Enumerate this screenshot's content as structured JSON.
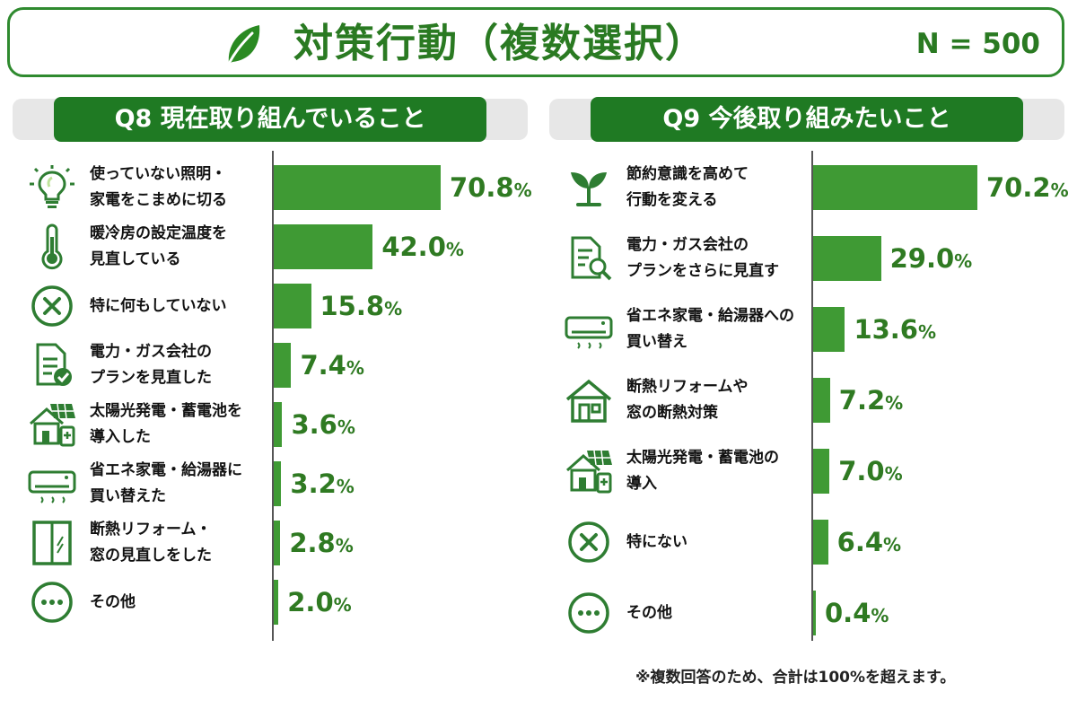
{
  "title": {
    "text": "対策行動（複数選択）",
    "sample": "N = 500",
    "icon": "leaf-icon"
  },
  "colors": {
    "accent": "#1f7a23",
    "bar": "#3f9a34",
    "value_text": "#2f7a22",
    "frame": "#2f8a2f"
  },
  "footnote": "※複数回答のため、合計は100%を超えます。",
  "chart_data": [
    {
      "type": "bar",
      "orientation": "horizontal",
      "title": "Q8 現在取り組んでいること",
      "unit": "%",
      "categories": [
        "使っていない照明・\n家電をこまめに切る",
        "暖冷房の設定温度を\n見直している",
        "特に何もしていない",
        "電力・ガス会社の\nプランを見直した",
        "太陽光発電・蓄電池を\n導入した",
        "省エネ家電・給湯器に\n買い替えた",
        "断熱リフォーム・\n窓の見直しをした",
        "その他"
      ],
      "values": [
        70.8,
        42.0,
        15.8,
        7.4,
        3.6,
        3.2,
        2.8,
        2.0
      ],
      "value_labels": [
        "70.8",
        "42.0",
        "15.8",
        "7.4",
        "3.6",
        "3.2",
        "2.8",
        "2.0"
      ],
      "icons": [
        "lightbulb-icon",
        "thermometer-icon",
        "x-circle-icon",
        "document-check-icon",
        "solar-house-icon",
        "air-conditioner-icon",
        "window-icon",
        "more-circle-icon"
      ],
      "xlim": [
        0,
        70.8
      ]
    },
    {
      "type": "bar",
      "orientation": "horizontal",
      "title": "Q9 今後取り組みたいこと",
      "unit": "%",
      "categories": [
        "節約意識を高めて\n行動を変える",
        "電力・ガス会社の\nプランをさらに見直す",
        "省エネ家電・給湯器への\n買い替え",
        "断熱リフォームや\n窓の断熱対策",
        "太陽光発電・蓄電池の\n導入",
        "特にない",
        "その他"
      ],
      "values": [
        70.2,
        29.0,
        13.6,
        7.2,
        7.0,
        6.4,
        0.4
      ],
      "value_labels": [
        "70.2",
        "29.0",
        "13.6",
        "7.2",
        "7.0",
        "6.4",
        "0.4"
      ],
      "icons": [
        "sprout-icon",
        "document-search-icon",
        "air-conditioner-icon",
        "house-icon",
        "solar-house-icon",
        "x-circle-icon",
        "more-circle-icon"
      ],
      "xlim": [
        0,
        70.2
      ]
    }
  ]
}
